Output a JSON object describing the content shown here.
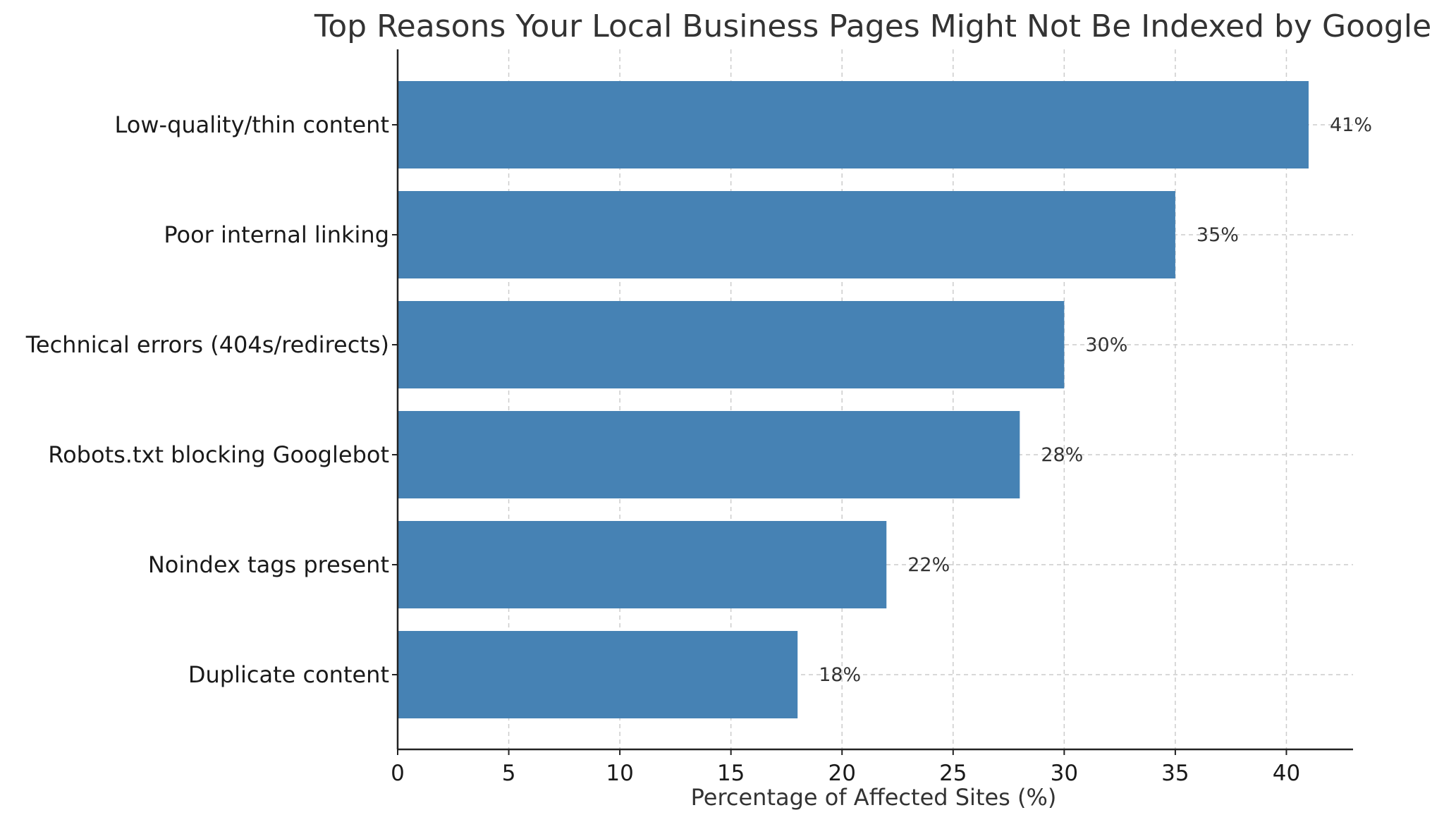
{
  "chart_data": {
    "type": "bar",
    "orientation": "horizontal",
    "title": "Top Reasons Your Local Business Pages Might Not Be Indexed by Google",
    "xlabel": "Percentage of Affected Sites (%)",
    "ylabel": "",
    "categories": [
      "Low-quality/thin content",
      "Poor internal linking",
      "Technical errors (404s/redirects)",
      "Robots.txt blocking Googlebot",
      "Noindex tags present",
      "Duplicate content"
    ],
    "values": [
      41,
      35,
      30,
      28,
      22,
      18
    ],
    "data_labels": [
      "41%",
      "35%",
      "30%",
      "28%",
      "22%",
      "18%"
    ],
    "xlim": [
      0,
      43
    ],
    "xticks": [
      0,
      5,
      10,
      15,
      20,
      25,
      30,
      35,
      40
    ],
    "xtick_labels": [
      "0",
      "5",
      "10",
      "15",
      "20",
      "25",
      "30",
      "35",
      "40"
    ],
    "grid": true,
    "bar_color": "#4682b4",
    "grid_color": "#cccccc",
    "text_color": "#333333"
  }
}
